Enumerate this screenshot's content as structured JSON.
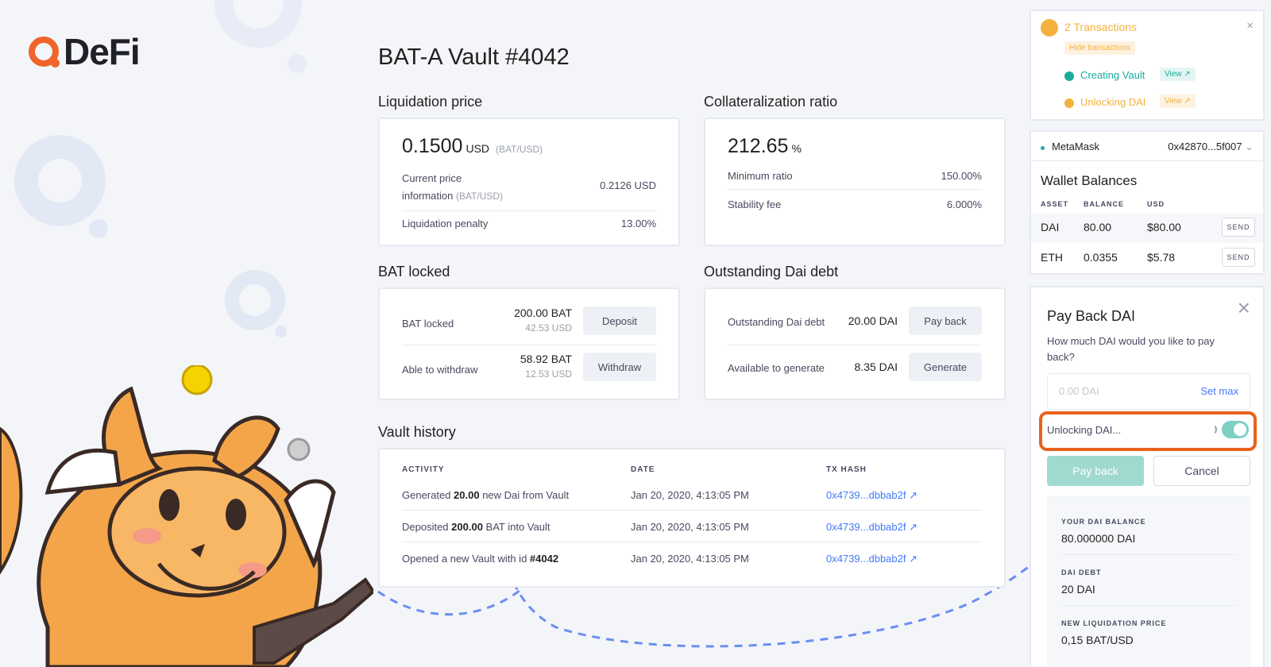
{
  "brand": {
    "name": "DeFi",
    "accent": "#f0642a"
  },
  "page": {
    "title": "BAT-A Vault #4042"
  },
  "liquidation": {
    "section_label": "Liquidation price",
    "value": "0.1500",
    "unit": "USD",
    "pair": "(BAT/USD)",
    "current_price_label_1": "Current price",
    "current_price_label_2": "information",
    "current_price_pair": "(BAT/USD)",
    "current_price_value": "0.2126 USD",
    "penalty_label": "Liquidation penalty",
    "penalty_value": "13.00%"
  },
  "collateral": {
    "section_label": "Collateralization ratio",
    "value": "212.65",
    "unit": "%",
    "min_ratio_label": "Minimum ratio",
    "min_ratio_value": "150.00%",
    "stability_label": "Stability fee",
    "stability_value": "6.000%"
  },
  "bat_locked": {
    "section_label": "BAT locked",
    "locked_label": "BAT locked",
    "locked_value": "200.00 BAT",
    "locked_usd": "42.53 USD",
    "deposit_label": "Deposit",
    "withdraw_label_text": "Able to withdraw",
    "withdraw_value": "58.92 BAT",
    "withdraw_usd": "12.53 USD",
    "withdraw_button": "Withdraw"
  },
  "debt": {
    "section_label": "Outstanding Dai debt",
    "debt_label": "Outstanding Dai debt",
    "debt_value": "20.00 DAI",
    "payback_label": "Pay back",
    "available_label": "Available to generate",
    "available_value": "8.35 DAI",
    "generate_label": "Generate"
  },
  "history": {
    "section_label": "Vault history",
    "columns": [
      "ACTIVITY",
      "DATE",
      "TX HASH"
    ],
    "rows": [
      {
        "pre": "Generated ",
        "bold": "20.00",
        "post": " new Dai from Vault",
        "date": "Jan 20, 2020, 4:13:05 PM",
        "hash": "0x4739...dbbab2f ↗"
      },
      {
        "pre": "Deposited ",
        "bold": "200.00",
        "post": " BAT into Vault",
        "date": "Jan 20, 2020, 4:13:05 PM",
        "hash": "0x4739...dbbab2f ↗"
      },
      {
        "pre": "Opened a new Vault with id ",
        "bold": "#4042",
        "post": "",
        "date": "Jan 20, 2020, 4:13:05 PM",
        "hash": "0x4739...dbbab2f ↗"
      }
    ]
  },
  "transactions": {
    "title": "2 Transactions",
    "hide_label": "Hide transactions",
    "items": [
      {
        "label": "Creating Vault",
        "view": "View ↗",
        "color": "#1aab9b"
      },
      {
        "label": "Unlocking DAI",
        "view": "View ↗",
        "color": "#f5b13d"
      }
    ]
  },
  "wallet": {
    "provider": "MetaMask",
    "address": "0x42870...5f007",
    "title": "Wallet Balances",
    "columns": [
      "ASSET",
      "BALANCE",
      "USD"
    ],
    "rows": [
      {
        "asset": "DAI",
        "balance": "80.00",
        "usd": "$80.00",
        "send": "SEND"
      },
      {
        "asset": "ETH",
        "balance": "0.0355",
        "usd": "$5.78",
        "send": "SEND"
      }
    ]
  },
  "payback": {
    "title": "Pay Back DAI",
    "question": "How much DAI would you like to pay back?",
    "input_placeholder": "0.00 DAI",
    "set_max": "Set max",
    "unlocking_label": "Unlocking DAI...",
    "payback_button": "Pay back",
    "cancel_button": "Cancel",
    "your_balance_label": "YOUR DAI BALANCE",
    "your_balance_value": "80.000000 DAI",
    "dai_debt_label": "DAI DEBT",
    "dai_debt_value": "20 DAI",
    "new_liq_label": "NEW LIQUIDATION PRICE",
    "new_liq_value": "0,15 BAT/USD"
  }
}
